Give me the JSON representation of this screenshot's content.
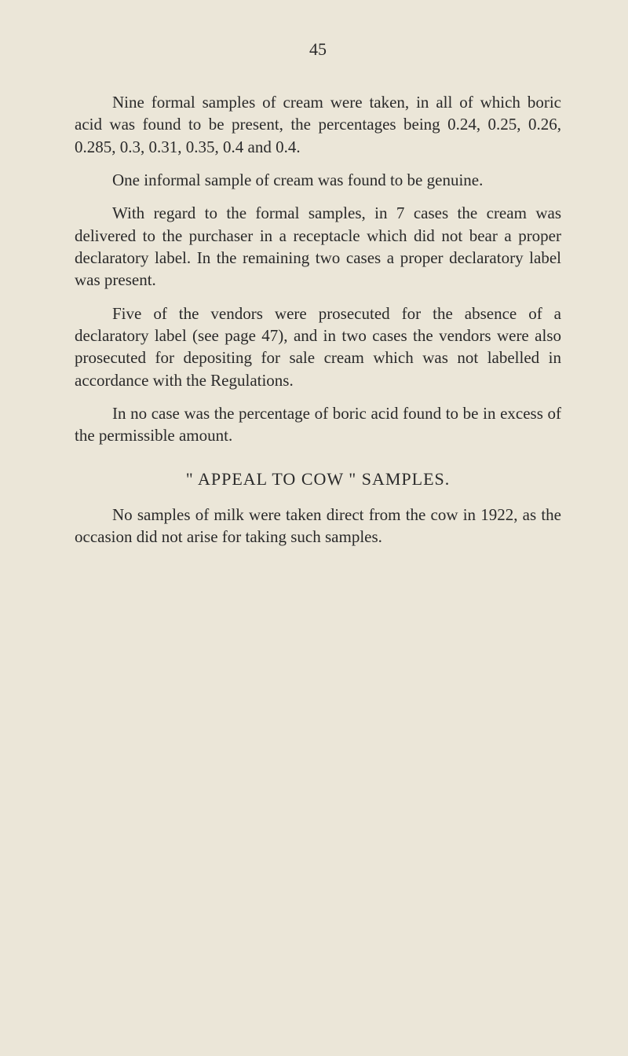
{
  "page": {
    "number": "45",
    "background_color": "#ebe6d8",
    "text_color": "#2a2a2a",
    "body_fontsize": 21,
    "heading_fontsize": 22
  },
  "paragraphs": {
    "p1": "Nine formal samples of cream were taken, in all of which boric acid was found to be present, the percentages being 0.24, 0.25, 0.26, 0.285, 0.3, 0.31, 0.35, 0.4 and 0.4.",
    "p2": "One informal sample of cream was found to be genuine.",
    "p3": "With regard to the formal samples, in 7 cases the cream was delivered to the purchaser in a receptacle which did not bear a proper declaratory label. In the remaining two cases a proper declaratory label was present.",
    "p4": "Five of the vendors were prosecuted for the absence of a declaratory label (see page 47), and in two cases the vendors were also prosecuted for depositing for sale cream which was not labelled in accordance with the Regulations.",
    "p5": "In no case was the percentage of boric acid found to be in excess of the permissible amount.",
    "heading": "\" APPEAL TO COW \" SAMPLES.",
    "p6": "No samples of milk were taken direct from the cow in 1922, as the occasion did not arise for taking such samples."
  }
}
